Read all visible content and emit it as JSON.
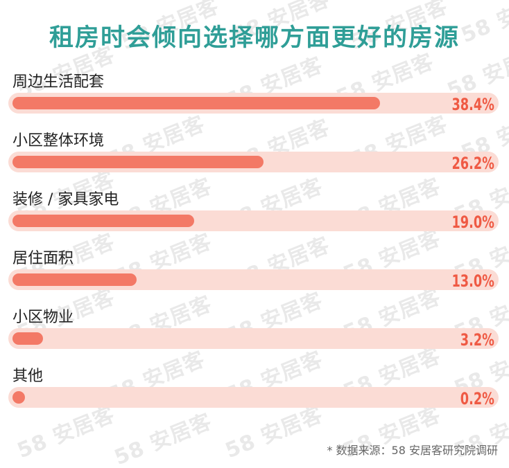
{
  "watermark_text": "58 安居客",
  "chart_data": {
    "type": "bar",
    "orientation": "horizontal",
    "title": "租房时会倾向选择哪方面更好的房源",
    "categories": [
      "周边生活配套",
      "小区整体环境",
      "装修 / 家具家电",
      "居住面积",
      "小区物业",
      "其他"
    ],
    "values": [
      38.4,
      26.2,
      19.0,
      13.0,
      3.2,
      0.2
    ],
    "value_labels": [
      "38.4%",
      "26.2%",
      "19.0%",
      "13.0%",
      "3.2%",
      "0.2%"
    ],
    "unit": "%",
    "xlim": [
      0,
      55
    ],
    "grid": false,
    "legend": "none"
  },
  "footnote": "* 数据来源：58 安居客研究院调研",
  "colors": {
    "title": "#2f9e97",
    "bar_fill": "#f37966",
    "bar_track": "#fbdcd5",
    "value_label": "#ef5a44",
    "label_text": "#222222"
  }
}
